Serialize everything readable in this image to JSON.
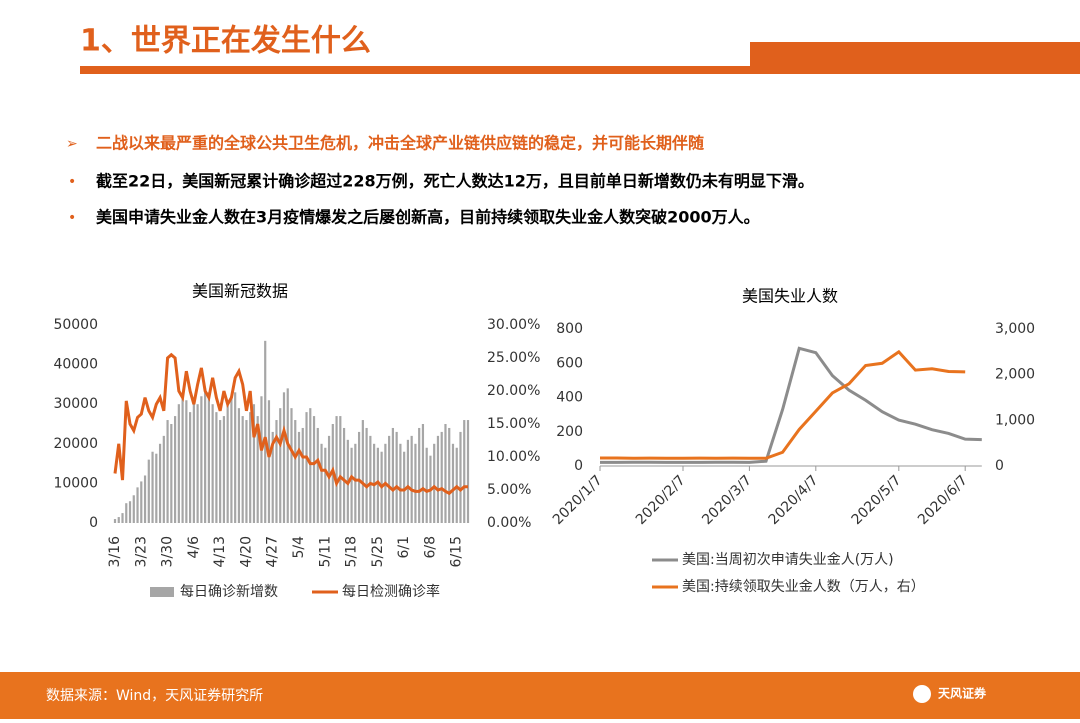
{
  "header": {
    "title": "1、世界正在发生什么"
  },
  "bullets": [
    "二战以来最严重的全球公共卫生危机，冲击全球产业链供应链的稳定，并可能长期伴随",
    "截至22日，美国新冠累计确诊超过228万例，死亡人数达12万，且目前单日新增数仍未有明显下滑。",
    "美国申请失业金人数在3月疫情爆发之后屡创新高，目前持续领取失业金人数突破2000万人。"
  ],
  "footer": {
    "source": "数据来源：Wind，天风证券研究所",
    "logo": "天风证券"
  },
  "chart_data": [
    {
      "type": "combo",
      "title": "美国新冠数据",
      "categories": [
        "3/16",
        null,
        null,
        null,
        null,
        null,
        null,
        "3/23",
        null,
        null,
        null,
        null,
        null,
        null,
        "3/30",
        null,
        null,
        null,
        null,
        null,
        null,
        "4/6",
        null,
        null,
        null,
        null,
        null,
        null,
        "4/13",
        null,
        null,
        null,
        null,
        null,
        null,
        "4/20",
        null,
        null,
        null,
        null,
        null,
        null,
        "4/27",
        null,
        null,
        null,
        null,
        null,
        null,
        "5/4",
        null,
        null,
        null,
        null,
        null,
        null,
        "5/11",
        null,
        null,
        null,
        null,
        null,
        null,
        "5/18",
        null,
        null,
        null,
        null,
        null,
        null,
        "5/25",
        null,
        null,
        null,
        null,
        null,
        null,
        "6/1",
        null,
        null,
        null,
        null,
        null,
        null,
        "6/8",
        null,
        null,
        null,
        null,
        null,
        null,
        "6/15",
        null,
        null,
        null
      ],
      "series": [
        {
          "name": "每日确诊新增数",
          "color": "#a6a6a6",
          "values": [
            1000,
            1500,
            2500,
            5000,
            5500,
            7000,
            9000,
            10500,
            12000,
            16000,
            18000,
            17500,
            20000,
            22000,
            26000,
            25000,
            27000,
            30000,
            32000,
            31000,
            28000,
            30000,
            30000,
            32000,
            34000,
            33000,
            30000,
            28000,
            26000,
            27000,
            30000,
            32000,
            33000,
            29000,
            27000,
            26000,
            28000,
            30000,
            27000,
            32000,
            46000,
            31000,
            23000,
            26000,
            29000,
            33000,
            34000,
            29000,
            26000,
            23000,
            24000,
            28000,
            29000,
            27000,
            24000,
            20000,
            19000,
            22000,
            25000,
            27000,
            27000,
            24000,
            21000,
            19000,
            20000,
            23000,
            26000,
            24000,
            22000,
            20000,
            19000,
            18000,
            20000,
            22000,
            24000,
            23000,
            20000,
            18000,
            21000,
            22000,
            20000,
            24000,
            25000,
            19000,
            17000,
            20000,
            22000,
            23000,
            25000,
            24000,
            20000,
            19000,
            23000,
            26000,
            26000
          ]
        },
        {
          "name": "每日检测确诊率",
          "color": "#e0601c",
          "axis": "y2",
          "values": [
            7.5,
            12,
            6.5,
            18.5,
            15,
            14,
            16,
            16.5,
            19,
            17,
            16,
            18,
            19,
            17,
            25,
            25.5,
            25,
            20,
            19,
            23,
            20,
            18,
            21,
            23.5,
            20,
            19,
            22,
            19,
            17,
            20,
            18,
            19,
            22,
            23,
            21,
            17,
            20,
            13,
            15,
            11,
            13,
            10,
            12,
            13,
            12,
            14,
            12,
            11,
            10,
            11,
            10,
            10,
            9,
            9,
            9.5,
            8,
            8,
            7,
            8,
            6,
            7,
            6.5,
            6,
            7,
            6.5,
            6.5,
            6,
            5.5,
            6,
            5.8,
            6.2,
            5.5,
            6,
            5.5,
            5,
            5.5,
            5,
            5,
            5.5,
            5,
            4.8,
            4.8,
            5.2,
            4.8,
            5,
            5.5,
            5,
            5.2,
            4.8,
            4.5,
            5,
            5.5,
            5,
            5.5,
            5.5
          ]
        }
      ],
      "ylim": [
        0,
        50000
      ],
      "yticks": [
        0,
        10000,
        20000,
        30000,
        40000,
        50000
      ],
      "y2lim": [
        0,
        30
      ],
      "y2ticks": [
        {
          "value": 0,
          "label": "0.00%"
        },
        {
          "value": 5,
          "label": "5.00%"
        },
        {
          "value": 10,
          "label": "10.00%"
        },
        {
          "value": 15,
          "label": "15.00%"
        },
        {
          "value": 20,
          "label": "20.00%"
        },
        {
          "value": 25,
          "label": "25.00%"
        },
        {
          "value": 30,
          "label": "30.00%"
        }
      ]
    },
    {
      "type": "line",
      "title": "美国失业人数",
      "categories": [
        "2020/1/7",
        null,
        null,
        null,
        null,
        "2020/2/7",
        null,
        null,
        null,
        "2020/3/7",
        null,
        null,
        null,
        "2020/4/7",
        null,
        null,
        null,
        null,
        "2020/5/7",
        null,
        null,
        null,
        "2020/6/7",
        null
      ],
      "series": [
        {
          "name": "美国:当周初次申请失业金人(万人)",
          "color": "#8c8c8c",
          "values": [
            21,
            21,
            22,
            22,
            21,
            21,
            21,
            22,
            22,
            21,
            28,
            330,
            687,
            662,
            528,
            443,
            384,
            317,
            268,
            244,
            212,
            190,
            157,
            154
          ]
        },
        {
          "name": "美国:持续领取失业金人数（万人，右）",
          "color": "#e8731e",
          "axis": "y2",
          "values": [
            175,
            175,
            170,
            172,
            170,
            170,
            172,
            170,
            172,
            170,
            170,
            300,
            800,
            1200,
            1600,
            1800,
            2200,
            2250,
            2500,
            2100,
            2130,
            2070,
            2060,
            null
          ]
        }
      ],
      "ylim": [
        0,
        800
      ],
      "yticks": [
        0,
        200,
        400,
        600,
        800
      ],
      "y2lim": [
        0,
        3000
      ],
      "y2ticks": [
        0,
        {
          "value": 1000,
          "label": "1,000"
        },
        {
          "value": 2000,
          "label": "2,000"
        },
        {
          "value": 3000,
          "label": "3,000"
        }
      ]
    }
  ]
}
